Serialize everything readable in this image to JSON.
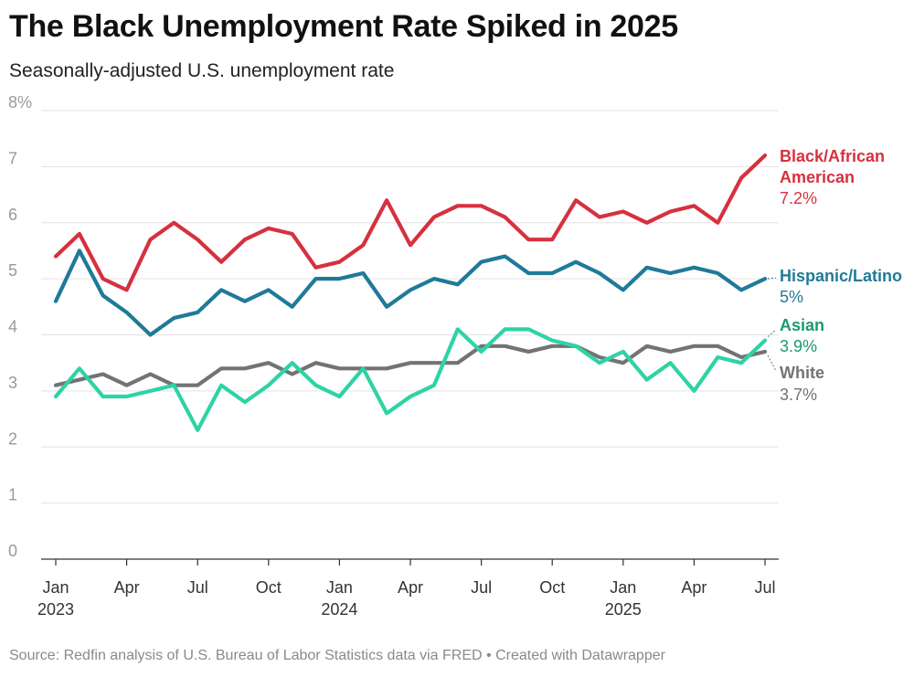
{
  "title": "The Black Unemployment Rate Spiked in 2025",
  "subtitle": "Seasonally-adjusted U.S. unemployment rate",
  "source": "Source: Redfin analysis of U.S. Bureau of Labor Statistics data via FRED • Created with Datawrapper",
  "chart_data": {
    "type": "line",
    "title": "The Black Unemployment Rate Spiked in 2025",
    "subtitle": "Seasonally-adjusted U.S. unemployment rate",
    "xlabel": "",
    "ylabel": "",
    "ylim": [
      0,
      8
    ],
    "yticks": [
      "0",
      "1",
      "2",
      "3",
      "4",
      "5",
      "6",
      "7",
      "8%"
    ],
    "grid": true,
    "x": [
      "Jan 2023",
      "Feb 2023",
      "Mar 2023",
      "Apr 2023",
      "May 2023",
      "Jun 2023",
      "Jul 2023",
      "Aug 2023",
      "Sep 2023",
      "Oct 2023",
      "Nov 2023",
      "Dec 2023",
      "Jan 2024",
      "Feb 2024",
      "Mar 2024",
      "Apr 2024",
      "May 2024",
      "Jun 2024",
      "Jul 2024",
      "Aug 2024",
      "Sep 2024",
      "Oct 2024",
      "Nov 2024",
      "Dec 2024",
      "Jan 2025",
      "Feb 2025",
      "Mar 2025",
      "Apr 2025",
      "May 2025",
      "Jun 2025",
      "Jul 2025"
    ],
    "xticks": [
      {
        "index": 0,
        "label": "Jan",
        "year": "2023"
      },
      {
        "index": 3,
        "label": "Apr",
        "year": ""
      },
      {
        "index": 6,
        "label": "Jul",
        "year": ""
      },
      {
        "index": 9,
        "label": "Oct",
        "year": ""
      },
      {
        "index": 12,
        "label": "Jan",
        "year": "2024"
      },
      {
        "index": 15,
        "label": "Apr",
        "year": ""
      },
      {
        "index": 18,
        "label": "Jul",
        "year": ""
      },
      {
        "index": 21,
        "label": "Oct",
        "year": ""
      },
      {
        "index": 24,
        "label": "Jan",
        "year": "2025"
      },
      {
        "index": 27,
        "label": "Apr",
        "year": ""
      },
      {
        "index": 30,
        "label": "Jul",
        "year": ""
      }
    ],
    "series": [
      {
        "name": "White",
        "label": "White",
        "value_label": "3.7%",
        "color": "#737373",
        "values": [
          3.1,
          3.2,
          3.3,
          3.1,
          3.3,
          3.1,
          3.1,
          3.4,
          3.4,
          3.5,
          3.3,
          3.5,
          3.4,
          3.4,
          3.4,
          3.5,
          3.5,
          3.5,
          3.8,
          3.8,
          3.7,
          3.8,
          3.8,
          3.6,
          3.5,
          3.8,
          3.7,
          3.8,
          3.8,
          3.6,
          3.7
        ]
      },
      {
        "name": "Asian",
        "label": "Asian",
        "value_label": "3.9%",
        "color": "#2ed3a5",
        "label_color": "#1a9a72",
        "values": [
          2.9,
          3.4,
          2.9,
          2.9,
          3.0,
          3.1,
          2.3,
          3.1,
          2.8,
          3.1,
          3.5,
          3.1,
          2.9,
          3.4,
          2.6,
          2.9,
          3.1,
          4.1,
          3.7,
          4.1,
          4.1,
          3.9,
          3.8,
          3.5,
          3.7,
          3.2,
          3.5,
          3.0,
          3.6,
          3.5,
          3.9
        ]
      },
      {
        "name": "Hispanic/Latino",
        "label": "Hispanic/Latino",
        "value_label": "5%",
        "color": "#1f7a99",
        "values": [
          4.6,
          5.5,
          4.7,
          4.4,
          4.0,
          4.3,
          4.4,
          4.8,
          4.6,
          4.8,
          4.5,
          5.0,
          5.0,
          5.1,
          4.5,
          4.8,
          5.0,
          4.9,
          5.3,
          5.4,
          5.1,
          5.1,
          5.3,
          5.1,
          4.8,
          5.2,
          5.1,
          5.2,
          5.1,
          4.8,
          5.0
        ]
      },
      {
        "name": "Black/African American",
        "label_line1": "Black/African",
        "label_line2": "American",
        "value_label": "7.2%",
        "color": "#d6313e",
        "values": [
          5.4,
          5.8,
          5.0,
          4.8,
          5.7,
          6.0,
          5.7,
          5.3,
          5.7,
          5.9,
          5.8,
          5.2,
          5.3,
          5.6,
          6.4,
          5.6,
          6.1,
          6.3,
          6.3,
          6.1,
          5.7,
          5.7,
          6.4,
          6.1,
          6.2,
          6.0,
          6.2,
          6.3,
          6.0,
          6.8,
          7.2
        ]
      }
    ]
  }
}
